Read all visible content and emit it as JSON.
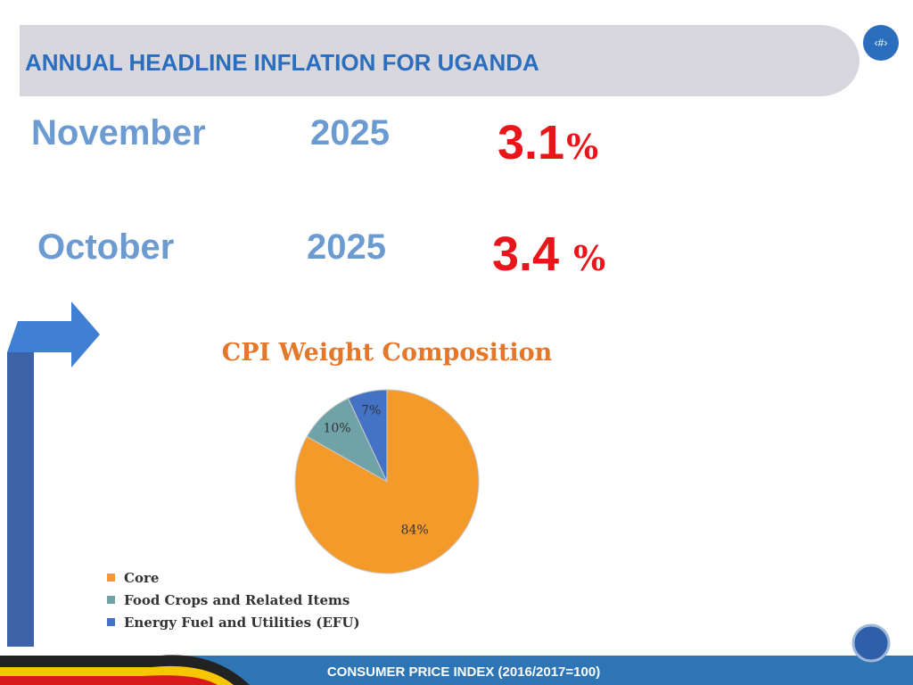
{
  "header": {
    "title": "ANNUAL HEADLINE INFLATION FOR UGANDA",
    "slide_number": "‹#›"
  },
  "rates": [
    {
      "month": "November",
      "year": "2025",
      "rate": "3.1",
      "unit": "%"
    },
    {
      "month": "October",
      "year": "2025",
      "rate": "3.4",
      "unit": "%"
    }
  ],
  "chart_data": {
    "type": "pie",
    "title": "CPI Weight Composition",
    "categories": [
      "Core",
      "Food Crops and Related Items",
      "Energy Fuel and Utilities (EFU)"
    ],
    "values": [
      84,
      10,
      7
    ],
    "value_labels": [
      "84%",
      "10%",
      "7%"
    ],
    "colors": [
      "#f39a2b",
      "#6fa3a8",
      "#4472c4"
    ]
  },
  "footer": {
    "text": "CONSUMER PRICE INDEX (2016/2017=100)"
  }
}
